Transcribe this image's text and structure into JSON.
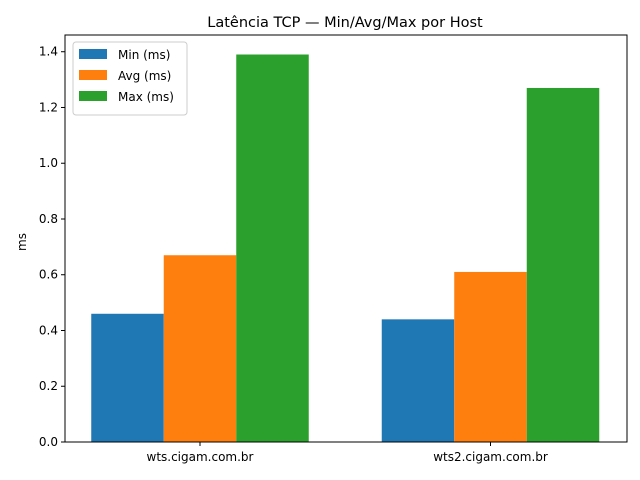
{
  "chart_data": {
    "type": "bar",
    "title": "Latência TCP — Min/Avg/Max por Host",
    "xlabel": "",
    "ylabel": "ms",
    "categories": [
      "wts.cigam.com.br",
      "wts2.cigam.com.br"
    ],
    "series": [
      {
        "name": "Min (ms)",
        "color": "#1f77b4",
        "values": [
          0.46,
          0.44
        ]
      },
      {
        "name": "Avg (ms)",
        "color": "#ff7f0e",
        "values": [
          0.67,
          0.61
        ]
      },
      {
        "name": "Max (ms)",
        "color": "#2ca02c",
        "values": [
          1.39,
          1.27
        ]
      }
    ],
    "ylim": [
      0,
      1.46
    ],
    "yticks": [
      0.0,
      0.2,
      0.4,
      0.6,
      0.8,
      1.0,
      1.2,
      1.4
    ],
    "ytick_labels": [
      "0.0",
      "0.2",
      "0.4",
      "0.6",
      "0.8",
      "1.0",
      "1.2",
      "1.4"
    ],
    "legend_position": "top-left",
    "grid": false
  }
}
